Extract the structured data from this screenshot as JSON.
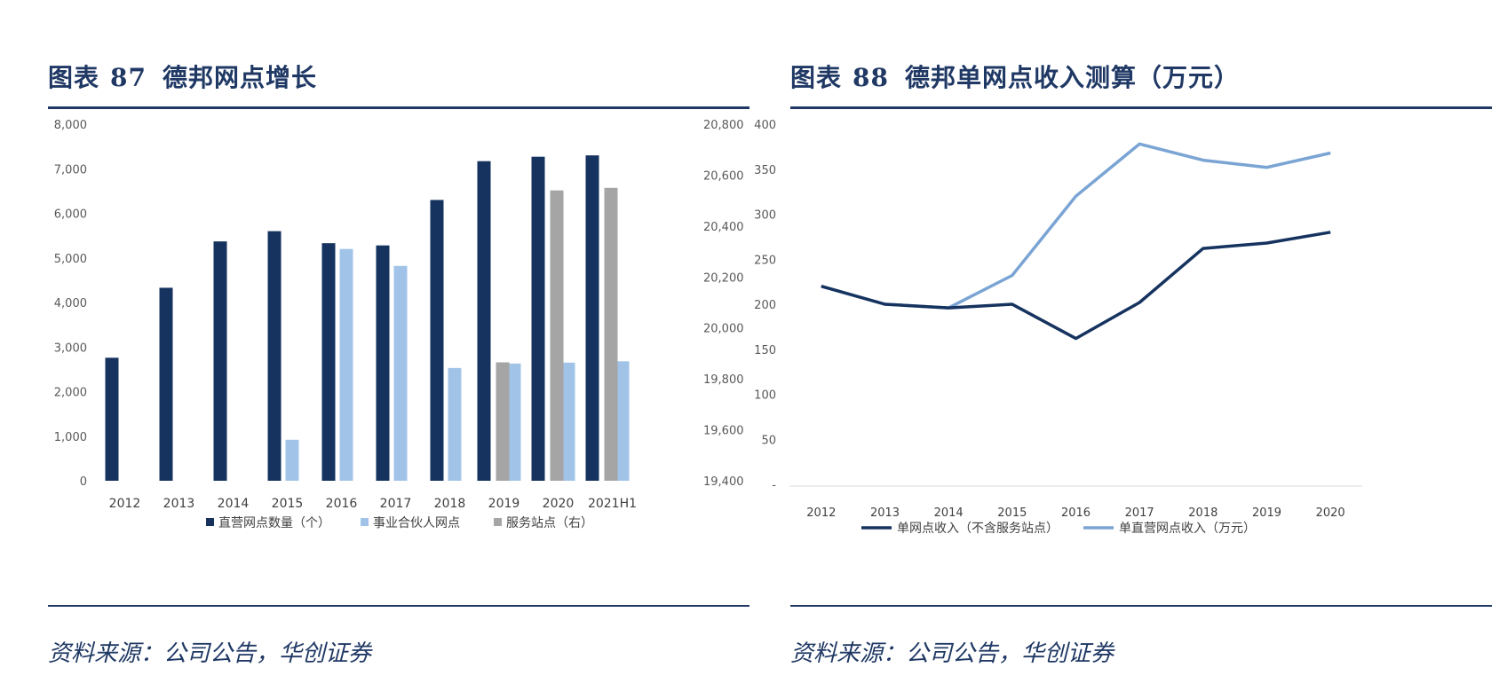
{
  "left": {
    "title_prefix": "图表",
    "title_number": "87",
    "title_text": "德邦网点增长",
    "source": "资料来源：公司公告，华创证券"
  },
  "right": {
    "title_prefix": "图表",
    "title_number": "88",
    "title_text": "德邦单网点收入测算（万元）",
    "source": "资料来源：公司公告，华创证券"
  },
  "colors": {
    "navy": "#1f3864",
    "direct": "#16335f",
    "partner": "#a2c3e8",
    "station": "#a5a5a5",
    "line_light": "#7aa4d4"
  },
  "chart_data": [
    {
      "type": "bar",
      "categories": [
        "2012",
        "2013",
        "2014",
        "2015",
        "2016",
        "2017",
        "2018",
        "2019",
        "2020",
        "2021H1"
      ],
      "series": [
        {
          "name": "直营网点数量（个）",
          "axis": "left",
          "values": [
            2760,
            4330,
            5370,
            5600,
            5330,
            5280,
            6300,
            7170,
            7270,
            7300
          ]
        },
        {
          "name": "事业合伙人网点",
          "axis": "left",
          "values": [
            null,
            null,
            null,
            920,
            5200,
            4820,
            2530,
            2630,
            2650,
            2680
          ]
        },
        {
          "name": "服务站点（右）",
          "axis": "right",
          "values": [
            null,
            null,
            null,
            null,
            null,
            null,
            null,
            19865,
            20540,
            20550
          ]
        }
      ],
      "ylim": [
        0,
        8000
      ],
      "y_ticks": [
        "0",
        "1,000",
        "2,000",
        "3,000",
        "4,000",
        "5,000",
        "6,000",
        "7,000",
        "8,000"
      ],
      "y2lim": [
        19400,
        20800
      ],
      "y2_ticks": [
        "19,400",
        "19,600",
        "19,800",
        "20,000",
        "20,200",
        "20,400",
        "20,600",
        "20,800"
      ],
      "legend_position": "bottom",
      "grid": false
    },
    {
      "type": "line",
      "categories": [
        "2012",
        "2013",
        "2014",
        "2015",
        "2016",
        "2017",
        "2018",
        "2019",
        "2020"
      ],
      "series": [
        {
          "name": "单网点收入（不含服务站点）",
          "values": [
            220,
            200,
            196,
            200,
            162,
            202,
            262,
            268,
            280
          ]
        },
        {
          "name": "单直营网点收入（万元）",
          "values": [
            220,
            200,
            196,
            232,
            320,
            378,
            360,
            352,
            368
          ]
        }
      ],
      "ylim": [
        0,
        400
      ],
      "y_ticks": [
        "-",
        "50",
        "100",
        "150",
        "200",
        "250",
        "300",
        "350",
        "400"
      ],
      "legend_position": "bottom",
      "grid": false
    }
  ]
}
